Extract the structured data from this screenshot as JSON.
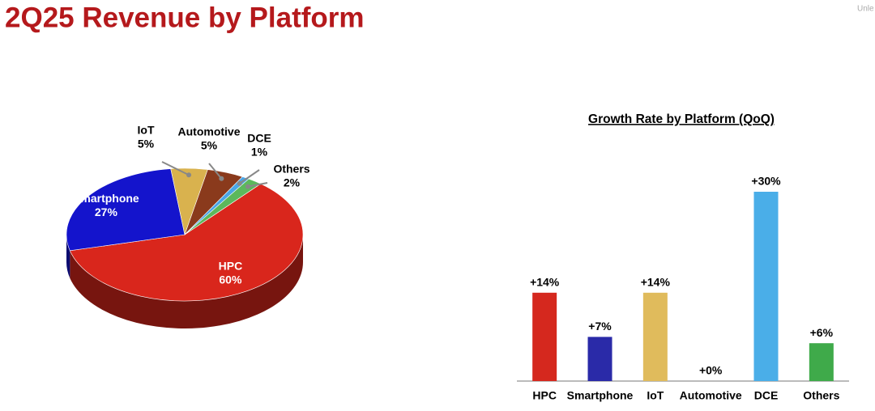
{
  "title": "2Q25 Revenue by Platform",
  "corner_text": "Unle",
  "chart_data": [
    {
      "type": "pie",
      "categories": [
        "HPC",
        "Smartphone",
        "IoT",
        "Automotive",
        "DCE",
        "Others"
      ],
      "values": [
        60,
        27,
        5,
        5,
        1,
        2
      ],
      "value_labels": [
        "60%",
        "27%",
        "5%",
        "5%",
        "1%",
        "2%"
      ],
      "colors": [
        "#d9261c",
        "#1414cc",
        "#d9b24e",
        "#8a3a1c",
        "#4aa6e6",
        "#5cb85c"
      ]
    },
    {
      "type": "bar",
      "title": "Growth Rate by Platform (QoQ)",
      "categories": [
        "HPC",
        "Smartphone",
        "IoT",
        "Automotive",
        "DCE",
        "Others"
      ],
      "values": [
        14,
        7,
        14,
        0,
        30,
        6
      ],
      "value_labels": [
        "+14%",
        "+7%",
        "+14%",
        "+0%",
        "+30%",
        "+6%"
      ],
      "colors": [
        "#d5281e",
        "#2a2aa8",
        "#e0bb5c",
        "#999999",
        "#4aaee8",
        "#3faa4a"
      ]
    }
  ]
}
